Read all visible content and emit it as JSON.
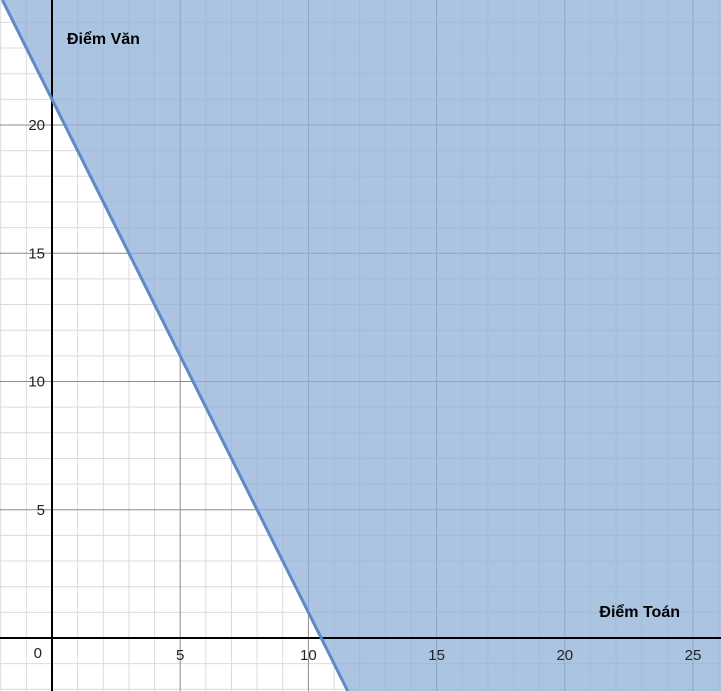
{
  "chart_data": {
    "type": "line",
    "title": "",
    "xlabel": "Điểm Toán",
    "ylabel": "Điểm Văn",
    "xlim": [
      -2,
      26
    ],
    "ylim": [
      -2,
      25
    ],
    "grid": true,
    "minor_grid_step": 1,
    "major_grid_step": 5,
    "x_ticks": [
      5,
      10,
      15,
      20,
      25
    ],
    "y_ticks": [
      5,
      10,
      15,
      20
    ],
    "origin_label": "0",
    "series": [
      {
        "x": [
          -2,
          11.5
        ],
        "y": [
          25,
          -2
        ],
        "line_color": "#5b8ac4",
        "shade": "above",
        "fill_color": "#8fb0d8"
      }
    ]
  }
}
